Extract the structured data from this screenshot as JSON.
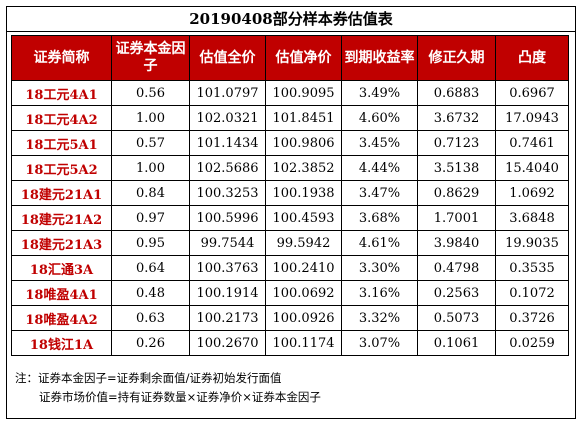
{
  "title": "20190408部分样本券估值表",
  "headers": [
    "证券简称",
    "证券本金因子",
    "估值全价",
    "估值净价",
    "到期收益率",
    "修正久期",
    "凸度"
  ],
  "rows": [
    [
      "18工元4A1",
      "0.56",
      "101.0797",
      "100.9095",
      "3.49%",
      "0.6883",
      "0.6967"
    ],
    [
      "18工元4A2",
      "1.00",
      "102.0321",
      "101.8451",
      "4.60%",
      "3.6732",
      "17.0943"
    ],
    [
      "18工元5A1",
      "0.57",
      "101.1434",
      "100.9806",
      "3.45%",
      "0.7123",
      "0.7461"
    ],
    [
      "18工元5A2",
      "1.00",
      "102.5686",
      "102.3852",
      "4.44%",
      "3.5138",
      "15.4040"
    ],
    [
      "18建元21A1",
      "0.84",
      "100.3253",
      "100.1938",
      "3.47%",
      "0.8629",
      "1.0692"
    ],
    [
      "18建元21A2",
      "0.97",
      "100.5996",
      "100.4593",
      "3.68%",
      "1.7001",
      "3.6848"
    ],
    [
      "18建元21A3",
      "0.95",
      "99.7544",
      "99.5942",
      "4.61%",
      "3.9840",
      "19.9035"
    ],
    [
      "18汇通3A",
      "0.64",
      "100.3763",
      "100.2410",
      "3.30%",
      "0.4798",
      "0.3535"
    ],
    [
      "18唯盈4A1",
      "0.48",
      "100.1914",
      "100.0692",
      "3.16%",
      "0.2563",
      "0.1072"
    ],
    [
      "18唯盈4A2",
      "0.63",
      "100.2173",
      "100.0926",
      "3.32%",
      "0.5073",
      "0.3726"
    ],
    [
      "18钱江1A",
      "0.26",
      "100.2670",
      "100.1174",
      "3.07%",
      "0.1061",
      "0.0259"
    ]
  ],
  "notes": {
    "line1": "注：证券本金因子=证券剩余面值/证券初始发行面值",
    "line2": "证券市场价值=持有证券数量×证券净价×证券本金因子"
  },
  "colors": {
    "header_bg": "#c00000",
    "name_text": "#c00000"
  }
}
